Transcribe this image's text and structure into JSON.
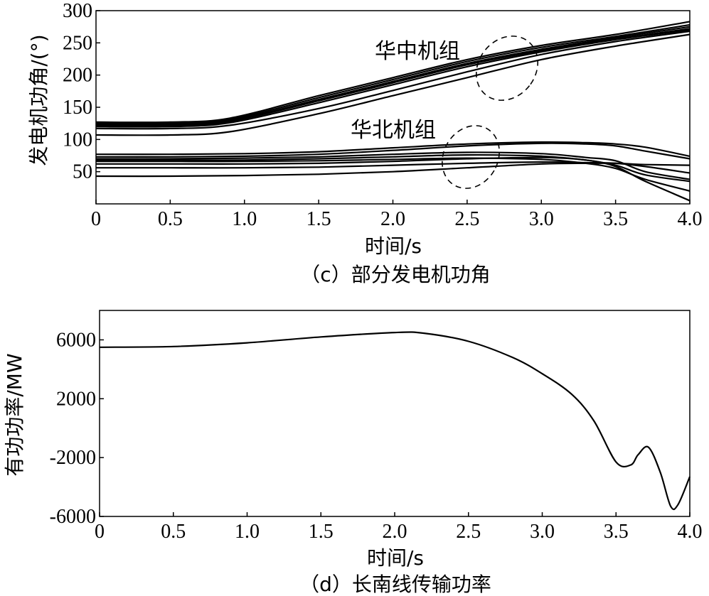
{
  "chart_data": [
    {
      "type": "line",
      "caption": "（c）部分发电机功角",
      "xlabel": "时间/s",
      "ylabel": "发电机功角/(°)",
      "xlim": [
        0,
        4.0
      ],
      "ylim": [
        0,
        300
      ],
      "xticks": [
        "0",
        "0.5",
        "1.0",
        "1.5",
        "2.0",
        "2.5",
        "3.0",
        "3.5",
        "4.0"
      ],
      "yticks": [
        "50",
        "100",
        "150",
        "200",
        "250",
        "300"
      ],
      "annotations": [
        "华中机组",
        "华北机组"
      ],
      "grid": false,
      "series_groups": [
        {
          "label": "华中机组",
          "x": [
            0,
            0.5,
            0.9,
            1.5,
            2.0,
            2.5,
            3.0,
            3.5,
            4.0
          ],
          "curves": [
            [
              127,
              127,
              133,
              168,
              196,
              224,
              246,
              263,
              283
            ],
            [
              125,
              125,
              131,
              165,
              193,
              221,
              243,
              260,
              278
            ],
            [
              123,
              123,
              129,
              162,
              190,
              218,
              240,
              258,
              275
            ],
            [
              122,
              122,
              128,
              160,
              188,
              216,
              238,
              256,
              272
            ],
            [
              120,
              120,
              126,
              157,
              185,
              213,
              236,
              255,
              270
            ],
            [
              117,
              117,
              122,
              148,
              176,
              205,
              232,
              252,
              268
            ],
            [
              107,
              107,
              112,
              140,
              168,
              196,
              224,
              245,
              263
            ]
          ]
        },
        {
          "label": "华北机组",
          "x": [
            0,
            0.5,
            1.0,
            1.5,
            2.0,
            2.5,
            3.0,
            3.3,
            3.5,
            3.7,
            4.0
          ],
          "curves": [
            [
              77,
              77,
              78,
              81,
              87,
              93,
              96,
              95,
              93,
              88,
              74
            ],
            [
              73,
              73,
              74,
              77,
              83,
              90,
              94,
              93,
              90,
              82,
              70
            ],
            [
              70,
              70,
              71,
              73,
              77,
              80,
              78,
              72,
              67,
              50,
              38
            ],
            [
              68,
              68,
              68,
              70,
              73,
              76,
              74,
              68,
              60,
              45,
              35
            ],
            [
              66,
              66,
              66,
              67,
              69,
              71,
              69,
              63,
              55,
              38,
              20
            ],
            [
              62,
              62,
              62,
              63,
              66,
              70,
              72,
              68,
              58,
              35,
              5
            ],
            [
              56,
              56,
              56,
              57,
              60,
              63,
              65,
              64,
              63,
              58,
              48
            ],
            [
              43,
              43,
              44,
              46,
              50,
              56,
              62,
              63,
              63,
              61,
              60
            ]
          ]
        }
      ]
    },
    {
      "type": "line",
      "caption": "（d）长南线传输功率",
      "xlabel": "时间/s",
      "ylabel": "有功功率/MW",
      "xlim": [
        0,
        4.0
      ],
      "ylim": [
        -6000,
        8000
      ],
      "xticks": [
        "0",
        "0.5",
        "1.0",
        "1.5",
        "2.0",
        "2.5",
        "3.0",
        "3.5",
        "4.0"
      ],
      "yticks": [
        "-6000",
        "-2000",
        "2000",
        "6000"
      ],
      "grid": false,
      "x": [
        0,
        0.5,
        1.0,
        1.5,
        2.0,
        2.2,
        2.5,
        2.8,
        3.0,
        3.2,
        3.35,
        3.5,
        3.6,
        3.65,
        3.72,
        3.8,
        3.87,
        3.92,
        4.0
      ],
      "values": [
        5500,
        5550,
        5800,
        6200,
        6500,
        6450,
        5900,
        4800,
        3700,
        2300,
        500,
        -2300,
        -2500,
        -1800,
        -1300,
        -3000,
        -5300,
        -5200,
        -3300
      ]
    }
  ]
}
